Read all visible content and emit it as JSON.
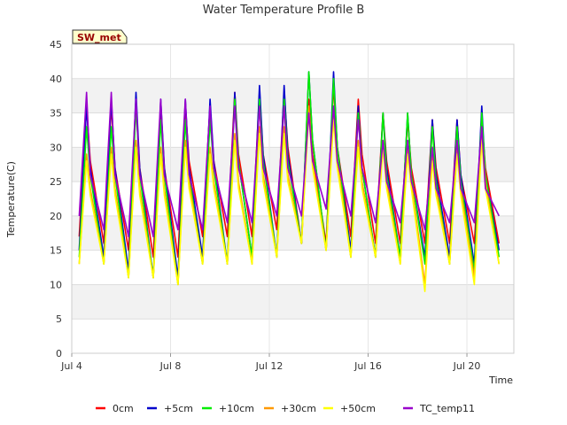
{
  "chart_data": {
    "type": "line",
    "title": "Water Temperature Profile B",
    "xlabel": "Time",
    "ylabel": "Temperature(C)",
    "site_badge": "SW_met",
    "xlim": [
      4.0,
      21.9
    ],
    "ylim": [
      0,
      45
    ],
    "x_unit": "day of July",
    "x_ticks": [
      {
        "value": 4,
        "label": "Jul 4"
      },
      {
        "value": 8,
        "label": "Jul 8"
      },
      {
        "value": 12,
        "label": "Jul 12"
      },
      {
        "value": 16,
        "label": "Jul 16"
      },
      {
        "value": 20,
        "label": "Jul 20"
      }
    ],
    "y_ticks": [
      0,
      5,
      10,
      15,
      20,
      25,
      30,
      35,
      40,
      45
    ],
    "grid": true,
    "background_bands": true,
    "legend_position": "bottom",
    "x": [
      4.3,
      4.6,
      4.75,
      5.3,
      5.6,
      5.75,
      6.3,
      6.6,
      6.75,
      7.3,
      7.6,
      7.75,
      8.3,
      8.6,
      8.75,
      9.3,
      9.6,
      9.75,
      10.3,
      10.6,
      10.75,
      11.3,
      11.6,
      11.75,
      12.3,
      12.6,
      12.75,
      13.3,
      13.6,
      13.75,
      14.3,
      14.6,
      14.75,
      15.3,
      15.6,
      15.75,
      16.3,
      16.6,
      16.75,
      17.3,
      17.6,
      17.75,
      18.3,
      18.6,
      18.75,
      19.3,
      19.6,
      19.75,
      20.3,
      20.6,
      20.75,
      21.3
    ],
    "series": [
      {
        "name": "0cm",
        "color": "#ff0000",
        "values": [
          17,
          36,
          28,
          16,
          36,
          27,
          15,
          36,
          27,
          14,
          36,
          27,
          14,
          36,
          28,
          17,
          36,
          28,
          17,
          38,
          29,
          17,
          38,
          29,
          18,
          38,
          30,
          16,
          37,
          29,
          16,
          39,
          30,
          17,
          37,
          29,
          16,
          35,
          28,
          16,
          34,
          27,
          16,
          34,
          27,
          16,
          34,
          26,
          16,
          34,
          27,
          16
        ]
      },
      {
        "name": "+5cm",
        "color": "#0000cc",
        "values": [
          15,
          36,
          27,
          14,
          37,
          27,
          12,
          38,
          27,
          11,
          37,
          27,
          11,
          37,
          27,
          14,
          37,
          28,
          13,
          38,
          28,
          14,
          39,
          29,
          14,
          39,
          29,
          16,
          41,
          31,
          15,
          41,
          30,
          15,
          36,
          27,
          14,
          35,
          27,
          14,
          35,
          26,
          14,
          34,
          26,
          14,
          34,
          26,
          13,
          36,
          26,
          15
        ]
      },
      {
        "name": "+10cm",
        "color": "#00ee00",
        "values": [
          14,
          33,
          26,
          13,
          33,
          26,
          11,
          36,
          26,
          11,
          34,
          26,
          10,
          34,
          26,
          13,
          34,
          27,
          13,
          37,
          28,
          14,
          37,
          28,
          14,
          37,
          28,
          16,
          41,
          31,
          15,
          40,
          30,
          14,
          35,
          27,
          14,
          35,
          26,
          14,
          35,
          26,
          13,
          33,
          25,
          13,
          33,
          25,
          12,
          35,
          26,
          14
        ]
      },
      {
        "name": "+30cm",
        "color": "#ff9900",
        "values": [
          13,
          29,
          24,
          13,
          30,
          24,
          11,
          31,
          24,
          11,
          30,
          24,
          10,
          31,
          25,
          13,
          30,
          25,
          13,
          32,
          25,
          13,
          33,
          26,
          14,
          33,
          26,
          16,
          36,
          28,
          15,
          35,
          28,
          14,
          31,
          25,
          14,
          31,
          25,
          13,
          30,
          25,
          10,
          29,
          24,
          13,
          30,
          24,
          11,
          32,
          25,
          13
        ]
      },
      {
        "name": "+50cm",
        "color": "#ffff00",
        "values": [
          13,
          28,
          23,
          13,
          29,
          23,
          11,
          30,
          23,
          11,
          29,
          23,
          10,
          30,
          24,
          13,
          29,
          24,
          13,
          31,
          24,
          13,
          32,
          25,
          14,
          32,
          25,
          16,
          35,
          27,
          15,
          34,
          27,
          14,
          30,
          24,
          14,
          30,
          24,
          13,
          29,
          24,
          9,
          28,
          23,
          13,
          29,
          23,
          10,
          31,
          24,
          13
        ]
      },
      {
        "name": "TC_temp11",
        "color": "#9900cc",
        "values": [
          20,
          38,
          26,
          18,
          38,
          26,
          17,
          37,
          26,
          17,
          37,
          26,
          18,
          37,
          26,
          18,
          36,
          27,
          19,
          36,
          27,
          19,
          36,
          27,
          20,
          36,
          27,
          20,
          35,
          28,
          21,
          36,
          28,
          20,
          34,
          27,
          19,
          31,
          25,
          19,
          31,
          25,
          18,
          30,
          24,
          19,
          31,
          24,
          19,
          33,
          24,
          20
        ]
      }
    ]
  }
}
